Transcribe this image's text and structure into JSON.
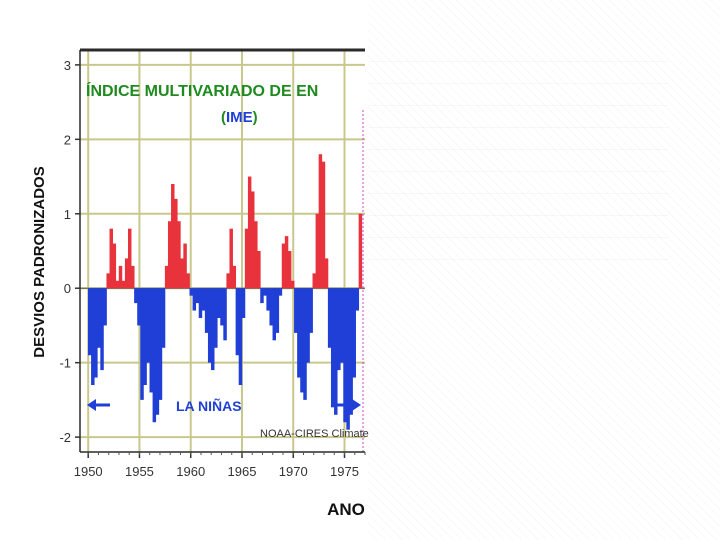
{
  "chart_data": {
    "type": "area",
    "title": "ÍNDICE MULTIVARIADO DE EN",
    "subtitle_open": "(",
    "subtitle_mid": "IME",
    "subtitle_close": ")",
    "xlabel": "ANO",
    "ylabel": "DESVIOS PADRONIZADOS",
    "xlim": [
      1949.2,
      1977.0
    ],
    "ylim": [
      -2.2,
      3.2
    ],
    "xticks": [
      1950,
      1955,
      1960,
      1965,
      1970,
      1975
    ],
    "yticks": [
      -2,
      -1,
      0,
      1,
      2,
      3
    ],
    "grid": true,
    "annotation_left": "LA NIÑAS",
    "credit": "NOAA-CIRES Climate",
    "colors": {
      "positive": "#e8323c",
      "negative": "#1f3fd6",
      "title": "#1f8a1f",
      "subtitle_accent": "#1f3fd6",
      "grid": "#c8c88c",
      "frame": "#2a2a2a"
    },
    "x": [
      1950.0,
      1950.3,
      1950.6,
      1950.9,
      1951.2,
      1951.5,
      1951.8,
      1952.1,
      1952.4,
      1952.7,
      1953.0,
      1953.3,
      1953.6,
      1953.9,
      1954.2,
      1954.5,
      1954.8,
      1955.1,
      1955.4,
      1955.7,
      1956.0,
      1956.3,
      1956.6,
      1956.9,
      1957.2,
      1957.5,
      1957.8,
      1958.1,
      1958.4,
      1958.7,
      1959.0,
      1959.3,
      1959.6,
      1959.9,
      1960.2,
      1960.5,
      1960.8,
      1961.1,
      1961.4,
      1961.7,
      1962.0,
      1962.3,
      1962.6,
      1962.9,
      1963.2,
      1963.5,
      1963.8,
      1964.1,
      1964.4,
      1964.7,
      1965.0,
      1965.3,
      1965.6,
      1965.9,
      1966.2,
      1966.5,
      1966.8,
      1967.1,
      1967.4,
      1967.7,
      1968.0,
      1968.3,
      1968.6,
      1968.9,
      1969.2,
      1969.5,
      1969.8,
      1970.1,
      1970.4,
      1970.7,
      1971.0,
      1971.3,
      1971.6,
      1971.9,
      1972.2,
      1972.5,
      1972.8,
      1973.1,
      1973.4,
      1973.7,
      1974.0,
      1974.3,
      1974.6,
      1974.9,
      1975.2,
      1975.5,
      1975.8,
      1976.1,
      1976.4
    ],
    "values": [
      -0.9,
      -1.3,
      -1.2,
      -0.8,
      -1.1,
      -0.5,
      0.2,
      0.8,
      0.6,
      0.1,
      0.3,
      0.1,
      0.4,
      0.8,
      0.3,
      -0.2,
      -0.5,
      -1.5,
      -1.3,
      -1.0,
      -1.4,
      -1.8,
      -1.7,
      -1.5,
      -0.8,
      0.3,
      0.9,
      1.4,
      1.2,
      0.9,
      0.4,
      0.6,
      0.2,
      -0.1,
      -0.3,
      -0.2,
      -0.4,
      -0.3,
      -0.6,
      -1.0,
      -1.1,
      -0.8,
      -0.4,
      -0.5,
      -0.7,
      0.2,
      0.8,
      0.3,
      -0.9,
      -1.3,
      -0.4,
      0.8,
      1.5,
      1.3,
      0.9,
      0.5,
      -0.2,
      -0.1,
      -0.3,
      -0.5,
      -0.7,
      -0.6,
      -0.1,
      0.6,
      0.7,
      0.5,
      0.1,
      -0.6,
      -1.2,
      -1.4,
      -1.5,
      -1.0,
      -0.6,
      0.2,
      1.0,
      1.8,
      1.7,
      0.4,
      -0.8,
      -1.6,
      -1.7,
      -1.1,
      -1.0,
      -1.8,
      -1.9,
      -1.7,
      -1.2,
      -0.3,
      1.0
    ]
  }
}
